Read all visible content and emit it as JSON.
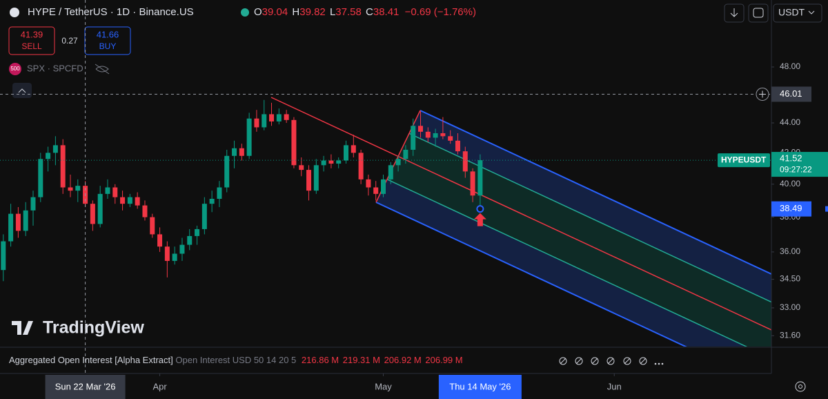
{
  "header": {
    "symbol": "HYPE / TetherUS · 1D · Binance.US",
    "ohlc": [
      {
        "label": "O",
        "value": "39.04"
      },
      {
        "label": "H",
        "value": "39.82"
      },
      {
        "label": "L",
        "value": "37.58"
      },
      {
        "label": "C",
        "value": "38.41"
      }
    ],
    "change": "−0.69 (−1.76%)"
  },
  "trade": {
    "sell_price": "41.39",
    "sell": "SELL",
    "spread": "0.27",
    "buy_price": "41.66",
    "buy": "BUY"
  },
  "overlay": {
    "badge": "500",
    "symbol": "SPX · SPCFD"
  },
  "toolbar": {
    "currency": "USDT"
  },
  "logo": "TradingView",
  "indicator": {
    "name": "Aggregated Open Interest [Alpha Extract]",
    "params": "Open Interest USD 50 14 20 5",
    "values": [
      "216.86 M",
      "219.31 M",
      "206.92 M",
      "206.99 M"
    ]
  },
  "chart_data": {
    "type": "candlestick",
    "log_scale": true,
    "grid": false,
    "up_color": "#089981",
    "down_color": "#f23645",
    "x": [
      "2026-03-11",
      "2026-03-12",
      "2026-03-13",
      "2026-03-14",
      "2026-03-15",
      "2026-03-16",
      "2026-03-17",
      "2026-03-18",
      "2026-03-19",
      "2026-03-20",
      "2026-03-21",
      "2026-03-22",
      "2026-03-23",
      "2026-03-24",
      "2026-03-25",
      "2026-03-26",
      "2026-03-27",
      "2026-03-28",
      "2026-03-29",
      "2026-03-30",
      "2026-03-31",
      "2026-04-01",
      "2026-04-02",
      "2026-04-03",
      "2026-04-04",
      "2026-04-05",
      "2026-04-06",
      "2026-04-07",
      "2026-04-08",
      "2026-04-09",
      "2026-04-10",
      "2026-04-11",
      "2026-04-12",
      "2026-04-13",
      "2026-04-14",
      "2026-04-15",
      "2026-04-16",
      "2026-04-17",
      "2026-04-18",
      "2026-04-19",
      "2026-04-20",
      "2026-04-21",
      "2026-04-22",
      "2026-04-23",
      "2026-04-24",
      "2026-04-25",
      "2026-04-26",
      "2026-04-27",
      "2026-04-28",
      "2026-04-29",
      "2026-04-30",
      "2026-05-01",
      "2026-05-02",
      "2026-05-03",
      "2026-05-04",
      "2026-05-05",
      "2026-05-06",
      "2026-05-07",
      "2026-05-08",
      "2026-05-09",
      "2026-05-10",
      "2026-05-11",
      "2026-05-12",
      "2026-05-13",
      "2026-05-14"
    ],
    "open": [
      35.0,
      36.6,
      38.2,
      37.2,
      38.4,
      39.2,
      41.6,
      42.0,
      42.5,
      39.8,
      39.6,
      39.9,
      38.8,
      37.6,
      39.4,
      39.8,
      39.2,
      38.8,
      39.2,
      38.7,
      38.0,
      37.0,
      36.3,
      35.5,
      35.9,
      36.4,
      36.9,
      37.3,
      38.8,
      39.1,
      39.8,
      41.8,
      42.3,
      41.8,
      44.3,
      43.7,
      44.6,
      44.1,
      44.6,
      44.2,
      41.2,
      40.9,
      39.6,
      41.2,
      41.5,
      41.3,
      41.5,
      42.5,
      42.0,
      40.3,
      39.8,
      39.4,
      40.3,
      41.2,
      41.6,
      42.2,
      43.8,
      43.4,
      43.0,
      43.3,
      43.1,
      42.8,
      42.1,
      40.8,
      39.3
    ],
    "high": [
      37.0,
      38.8,
      38.6,
      38.9,
      39.6,
      42.0,
      42.4,
      43.1,
      42.9,
      40.6,
      40.3,
      40.2,
      39.0,
      39.9,
      40.3,
      40.0,
      39.6,
      39.4,
      39.5,
      39.0,
      38.2,
      37.4,
      36.6,
      36.3,
      36.8,
      37.3,
      37.5,
      39.2,
      39.6,
      40.2,
      42.2,
      42.8,
      42.6,
      44.7,
      44.9,
      45.6,
      45.4,
      45.0,
      44.9,
      44.4,
      41.7,
      41.2,
      41.6,
      41.8,
      41.9,
      41.7,
      42.8,
      43.2,
      42.2,
      40.6,
      40.2,
      40.6,
      41.4,
      41.8,
      42.5,
      44.3,
      44.8,
      43.7,
      43.6,
      44.4,
      43.5,
      43.3,
      42.4,
      41.0,
      41.9
    ],
    "low": [
      34.4,
      36.3,
      36.8,
      36.9,
      37.5,
      38.9,
      40.8,
      41.2,
      39.4,
      39.2,
      38.9,
      38.6,
      37.2,
      37.4,
      39.1,
      38.8,
      38.4,
      38.6,
      38.5,
      37.8,
      36.8,
      36.0,
      34.6,
      35.3,
      35.5,
      36.1,
      36.4,
      37.0,
      38.3,
      38.6,
      39.5,
      41.0,
      41.5,
      41.6,
      43.4,
      43.5,
      43.8,
      43.9,
      44.0,
      41.0,
      40.5,
      39.0,
      39.4,
      40.8,
      41.0,
      41.0,
      41.3,
      41.7,
      40.0,
      39.3,
      39.0,
      39.2,
      40.0,
      40.8,
      41.3,
      41.8,
      43.0,
      42.7,
      42.4,
      42.9,
      42.6,
      41.9,
      40.4,
      38.9,
      38.4
    ],
    "close": [
      36.6,
      38.2,
      37.2,
      38.4,
      39.2,
      41.6,
      42.0,
      42.5,
      39.8,
      39.6,
      39.9,
      38.8,
      37.6,
      39.4,
      39.8,
      39.2,
      38.8,
      39.2,
      38.7,
      38.0,
      37.0,
      36.3,
      35.5,
      35.9,
      36.4,
      36.9,
      37.3,
      38.8,
      39.1,
      39.8,
      41.8,
      42.3,
      41.8,
      44.3,
      43.7,
      44.6,
      44.1,
      44.6,
      44.2,
      41.2,
      40.9,
      39.6,
      41.2,
      41.5,
      41.3,
      41.5,
      42.5,
      42.0,
      40.3,
      39.8,
      39.4,
      40.3,
      41.2,
      41.6,
      42.2,
      43.8,
      43.4,
      43.0,
      43.3,
      43.1,
      42.8,
      42.1,
      40.8,
      39.3,
      41.52
    ],
    "xlim": [
      "2026-03-10",
      "2026-06-22"
    ],
    "xticks": [
      {
        "value": "2026-04-01",
        "label": "Apr"
      },
      {
        "value": "2026-05-01",
        "label": "May"
      },
      {
        "value": "2026-06-01",
        "label": "Jun"
      }
    ],
    "ylim": [
      31.14,
      53.27
    ],
    "yticks": [
      {
        "value": 48,
        "label": "48.00"
      },
      {
        "value": 44,
        "label": "44.00"
      },
      {
        "value": 42,
        "label": "42.00"
      },
      {
        "value": 40,
        "label": "40.00"
      },
      {
        "value": 38,
        "label": "38.00"
      },
      {
        "value": 36,
        "label": "36.00"
      },
      {
        "value": 34.5,
        "label": "34.50"
      },
      {
        "value": 33,
        "label": "33.00"
      },
      {
        "value": 31.6,
        "label": "31.60"
      }
    ],
    "crosshair_x": {
      "value": "2026-03-22",
      "label": "Sun 22 Mar '26"
    },
    "crosshair_y": 46.01,
    "selected_x": {
      "value": "2026-05-14",
      "label": "Thu 14 May '26"
    },
    "last_symbol": "HYPEUSDT",
    "countdown": "09:27:22",
    "marker": 38.49
  }
}
